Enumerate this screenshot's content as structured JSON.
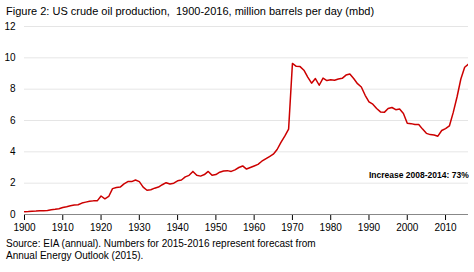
{
  "chart_data": {
    "type": "line",
    "title": "Figure 2: US crude oil production,  1900-2016, million barrels per day (mbd)",
    "source": "Source: EIA (annual). Numbers for 2015-2016 represent forecast from\nAnnual Energy Outlook (2015).",
    "annotations": [
      {
        "text": "Increase 2008-2014: 73%",
        "x": 1990,
        "y": 2.5
      }
    ],
    "color": "#cc0000",
    "grid": true,
    "xlim": [
      1900,
      2016
    ],
    "ylim": [
      0,
      12
    ],
    "xticks": [
      1900,
      1910,
      1920,
      1930,
      1940,
      1950,
      1960,
      1970,
      1980,
      1990,
      2000,
      2010
    ],
    "yticks": [
      0,
      2,
      4,
      6,
      8,
      10,
      12
    ],
    "x": [
      1900,
      1901,
      1902,
      1903,
      1904,
      1905,
      1906,
      1907,
      1908,
      1909,
      1910,
      1911,
      1912,
      1913,
      1914,
      1915,
      1916,
      1917,
      1918,
      1919,
      1920,
      1921,
      1922,
      1923,
      1924,
      1925,
      1926,
      1927,
      1928,
      1929,
      1930,
      1931,
      1932,
      1933,
      1934,
      1935,
      1936,
      1937,
      1938,
      1939,
      1940,
      1941,
      1942,
      1943,
      1944,
      1945,
      1946,
      1947,
      1948,
      1949,
      1950,
      1951,
      1952,
      1953,
      1954,
      1955,
      1956,
      1957,
      1958,
      1959,
      1960,
      1961,
      1962,
      1963,
      1964,
      1965,
      1966,
      1967,
      1968,
      1969,
      1970,
      1971,
      1972,
      1973,
      1974,
      1975,
      1976,
      1977,
      1978,
      1979,
      1980,
      1981,
      1982,
      1983,
      1984,
      1985,
      1986,
      1987,
      1988,
      1989,
      1990,
      1991,
      1992,
      1993,
      1994,
      1995,
      1996,
      1997,
      1998,
      1999,
      2000,
      2001,
      2002,
      2003,
      2004,
      2005,
      2006,
      2007,
      2008,
      2009,
      2010,
      2011,
      2012,
      2013,
      2014,
      2015,
      2016
    ],
    "values": [
      0.18,
      0.19,
      0.21,
      0.22,
      0.24,
      0.24,
      0.26,
      0.31,
      0.33,
      0.37,
      0.45,
      0.5,
      0.56,
      0.6,
      0.62,
      0.73,
      0.79,
      0.84,
      0.87,
      0.87,
      1.18,
      1.0,
      1.15,
      1.65,
      1.72,
      1.75,
      1.95,
      2.1,
      2.1,
      2.2,
      2.1,
      1.75,
      1.55,
      1.58,
      1.68,
      1.75,
      1.9,
      2.03,
      1.95,
      2.0,
      2.15,
      2.2,
      2.4,
      2.5,
      2.75,
      2.5,
      2.45,
      2.55,
      2.75,
      2.5,
      2.55,
      2.7,
      2.78,
      2.8,
      2.75,
      2.85,
      3.0,
      3.1,
      2.9,
      3.0,
      3.1,
      3.2,
      3.4,
      3.55,
      3.7,
      3.85,
      4.15,
      4.6,
      5.0,
      5.45,
      9.64,
      9.46,
      9.44,
      9.21,
      8.77,
      8.38,
      8.68,
      8.25,
      8.71,
      8.55,
      8.6,
      8.57,
      8.65,
      8.69,
      8.9,
      8.97,
      8.68,
      8.35,
      8.14,
      7.61,
      7.19,
      7.04,
      6.77,
      6.55,
      6.52,
      6.77,
      6.83,
      6.69,
      6.73,
      6.45,
      5.82,
      5.8,
      5.75,
      5.75,
      5.45,
      5.18,
      5.1,
      5.07,
      5.0,
      5.36,
      5.48,
      5.65,
      6.5,
      7.5,
      8.65,
      9.4,
      9.6
    ]
  }
}
